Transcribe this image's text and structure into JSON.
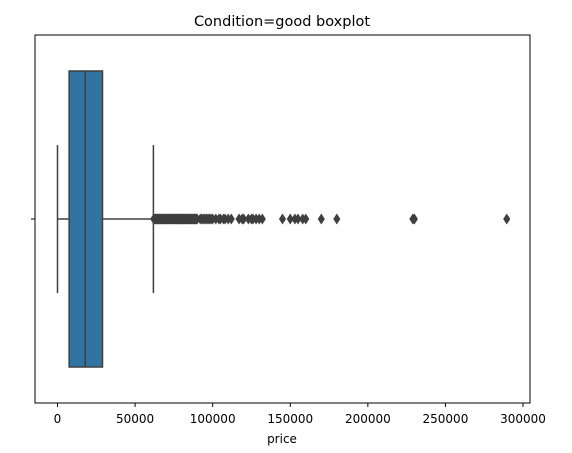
{
  "chart_data": {
    "type": "boxplot",
    "title": "Condition=good boxplot",
    "xlabel": "price",
    "ylabel": "",
    "orientation": "horizontal",
    "xlim": [
      -14500,
      304500
    ],
    "xticks": [
      0,
      50000,
      100000,
      150000,
      200000,
      250000,
      300000
    ],
    "xtick_labels": [
      "0",
      "50000",
      "100000",
      "150000",
      "200000",
      "250000",
      "300000"
    ],
    "grid": false,
    "legend": "none",
    "box": {
      "whisker_low": 0,
      "q1": 7500,
      "median": 17900,
      "q3": 29000,
      "whisker_high": 61800,
      "color": "#3274a1",
      "edge_color": "#3f3f3f"
    },
    "outliers": [
      62000,
      62500,
      63000,
      63500,
      64000,
      64500,
      65000,
      65500,
      66000,
      66500,
      67000,
      67500,
      68000,
      68500,
      69000,
      69500,
      70000,
      70500,
      71000,
      71500,
      72000,
      72500,
      73000,
      73500,
      74000,
      74500,
      75000,
      75500,
      76000,
      76500,
      77000,
      77500,
      78000,
      78500,
      79000,
      79500,
      80000,
      80500,
      81000,
      81500,
      82000,
      82500,
      83000,
      83500,
      84000,
      84500,
      85000,
      85500,
      86000,
      86500,
      87000,
      87500,
      88000,
      88500,
      89000,
      89500,
      90000,
      92000,
      93000,
      94000,
      95000,
      96000,
      97000,
      98000,
      99000,
      100000,
      102000,
      104000,
      105000,
      107000,
      108000,
      110000,
      112000,
      117000,
      119000,
      120000,
      123000,
      125000,
      126000,
      128000,
      130000,
      132000,
      145000,
      150000,
      153000,
      155000,
      158000,
      160000,
      170000,
      180000,
      229000,
      230000,
      289500
    ]
  }
}
